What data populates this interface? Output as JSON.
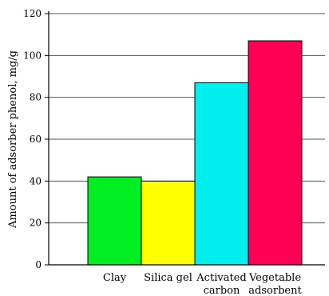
{
  "chart_data": {
    "type": "bar",
    "title": "",
    "xlabel": "",
    "ylabel": "Amount of adsorber phenol, mg/g",
    "ylim": [
      0,
      120
    ],
    "yticks": [
      0,
      20,
      40,
      60,
      80,
      100,
      120
    ],
    "grid": true,
    "categories": [
      [
        "Clay"
      ],
      [
        "Silica gel"
      ],
      [
        "Activated",
        "carbon"
      ],
      [
        "Vegetable",
        "adsorbent"
      ]
    ],
    "values": [
      42,
      40,
      87,
      107
    ],
    "colors": [
      "#00ee22",
      "#ffff00",
      "#00eeee",
      "#ff0055"
    ]
  }
}
